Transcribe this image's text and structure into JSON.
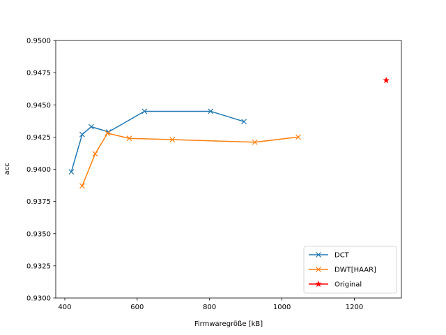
{
  "chart_data": {
    "type": "line",
    "title": "",
    "xlabel": "Firmwaregröße [kB]",
    "ylabel": "acc",
    "xlim": [
      375,
      1330
    ],
    "ylim": [
      0.93,
      0.95
    ],
    "xticks": [
      400,
      600,
      800,
      1000,
      1200
    ],
    "yticks": [
      0.93,
      0.9325,
      0.935,
      0.9375,
      0.94,
      0.9425,
      0.945,
      0.9475,
      0.95
    ],
    "ytick_labels": [
      "0.9300",
      "0.9325",
      "0.9350",
      "0.9375",
      "0.9400",
      "0.9425",
      "0.9450",
      "0.9475",
      "0.9500"
    ],
    "grid": false,
    "legend_position": "lower-right",
    "series": [
      {
        "name": "DCT",
        "color": "#1f77b4",
        "marker": "x",
        "line": true,
        "x": [
          418,
          448,
          473,
          521,
          620,
          803,
          895
        ],
        "y": [
          0.9398,
          0.9427,
          0.9433,
          0.9429,
          0.9445,
          0.9445,
          0.9437
        ]
      },
      {
        "name": "DWT[HAAR]",
        "color": "#ff7f0e",
        "marker": "x",
        "line": true,
        "x": [
          448,
          484,
          518,
          578,
          697,
          925,
          1045
        ],
        "y": [
          0.9387,
          0.9412,
          0.9428,
          0.9424,
          0.9423,
          0.9421,
          0.9425
        ]
      },
      {
        "name": "Original",
        "color": "#ff0000",
        "marker": "star",
        "line": false,
        "x": [
          1288
        ],
        "y": [
          0.9469
        ]
      }
    ]
  }
}
